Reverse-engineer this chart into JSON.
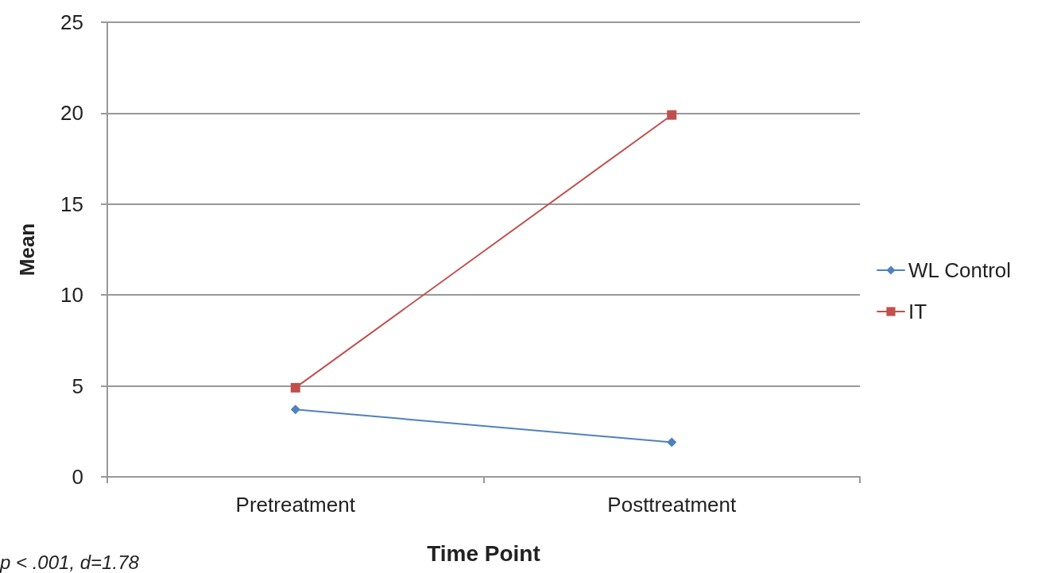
{
  "chart_data": {
    "type": "line",
    "categories": [
      "Pretreatment",
      "Posttreatment"
    ],
    "series": [
      {
        "name": "WL Control",
        "color": "#4f81bd",
        "values": [
          3.7,
          1.9
        ],
        "marker": "diamond"
      },
      {
        "name": "IT",
        "color": "#c0504d",
        "values": [
          4.9,
          19.9
        ],
        "marker": "square"
      }
    ],
    "xlabel": "Time Point",
    "ylabel": "Mean",
    "ylim": [
      0,
      25
    ],
    "yticks": [
      0,
      5,
      10,
      15,
      20,
      25
    ],
    "grid": "y",
    "legend": "right",
    "annotations": [
      "p < .001, d=1.78"
    ]
  }
}
